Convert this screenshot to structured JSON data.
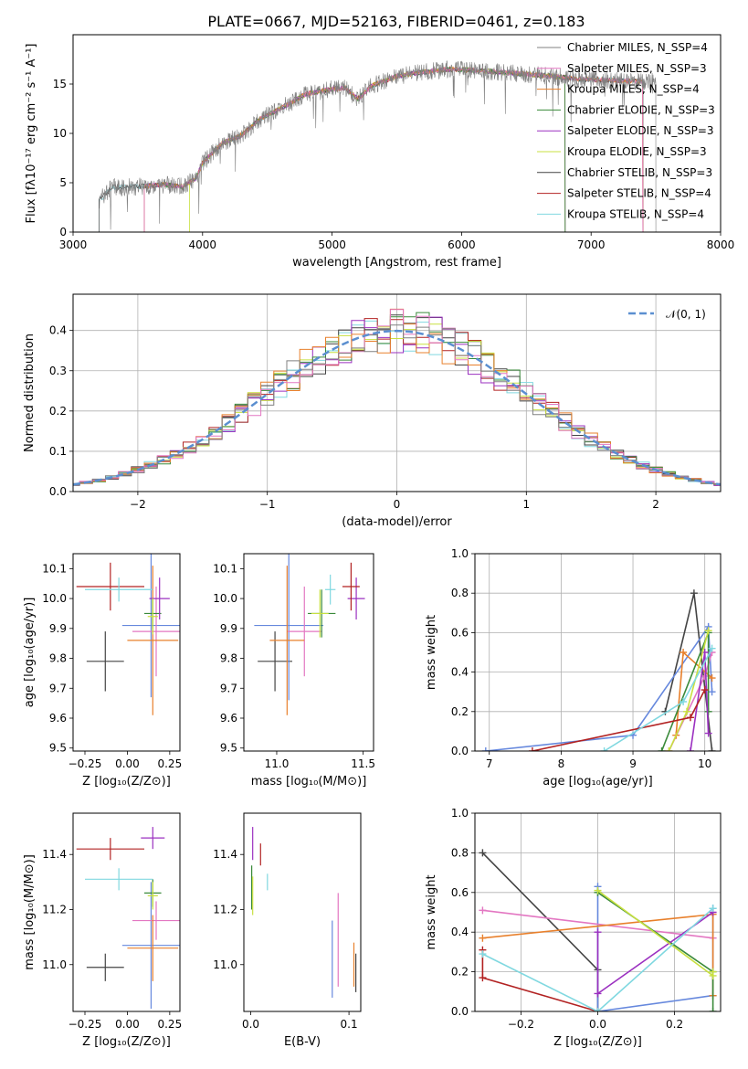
{
  "title": "PLATE=0667, MJD=52163, FIBERID=0461, z=0.183",
  "colors": {
    "chabrier_miles": "#808080",
    "salpeter_miles": "#e377c2",
    "kroupa_miles": "#e8802c",
    "chabrier_elodie": "#3a8a3a",
    "salpeter_elodie": "#9b30c0",
    "kroupa_elodie": "#c8e040",
    "chabrier_stelib": "#444444",
    "salpeter_stelib": "#b22222",
    "kroupa_stelib": "#80d8e0",
    "blue": "#6688dd",
    "gauss": "#5b8fd0"
  },
  "chart_data": [
    {
      "id": "spectrum",
      "type": "line",
      "title": "PLATE=0667, MJD=52163, FIBERID=0461, z=0.183",
      "xlabel": "wavelength [Angstrom, rest frame]",
      "ylabel": "Flux [fλ10⁻¹⁷ erg cm⁻² s⁻¹ A⁻¹]",
      "xlim": [
        3000,
        8000
      ],
      "ylim": [
        0,
        20
      ],
      "xticks": [
        "3000",
        "4000",
        "5000",
        "6000",
        "7000",
        "8000"
      ],
      "yticks": [
        "0",
        "5",
        "10",
        "15"
      ],
      "grid": false,
      "legend_position": "top-right",
      "legend": [
        "Chabrier MILES, N_SSP=4",
        "Salpeter MILES, N_SSP=3",
        "Kroupa MILES, N_SSP=4",
        "Chabrier ELODIE, N_SSP=3",
        "Salpeter ELODIE, N_SSP=3",
        "Kroupa ELODIE, N_SSP=3",
        "Chabrier STELIB, N_SSP=3",
        "Salpeter STELIB, N_SSP=4",
        "Kroupa STELIB, N_SSP=4"
      ],
      "series_extent": [
        [
          3200,
          7500
        ],
        [
          3550,
          7400
        ],
        [
          3550,
          7400
        ],
        [
          3550,
          6800
        ],
        [
          3550,
          6800
        ],
        [
          3900,
          6800
        ],
        [
          3200,
          7400
        ],
        [
          3550,
          7400
        ],
        [
          3200,
          7400
        ]
      ],
      "continuum": [
        [
          3200,
          3.2
        ],
        [
          3300,
          4.5
        ],
        [
          3500,
          4.6
        ],
        [
          3700,
          4.8
        ],
        [
          3850,
          4.6
        ],
        [
          3950,
          5.5
        ],
        [
          4000,
          7.0
        ],
        [
          4150,
          9.0
        ],
        [
          4300,
          9.8
        ],
        [
          4450,
          11.5
        ],
        [
          4600,
          12.5
        ],
        [
          4800,
          14.0
        ],
        [
          5000,
          14.5
        ],
        [
          5100,
          14.6
        ],
        [
          5200,
          13.5
        ],
        [
          5300,
          14.8
        ],
        [
          5500,
          15.8
        ],
        [
          5700,
          16.2
        ],
        [
          5900,
          16.5
        ],
        [
          6100,
          16.4
        ],
        [
          6300,
          16.2
        ],
        [
          6500,
          16.0
        ],
        [
          6700,
          15.8
        ],
        [
          6900,
          15.5
        ],
        [
          7100,
          15.4
        ],
        [
          7300,
          15.3
        ],
        [
          7500,
          15.2
        ]
      ]
    },
    {
      "id": "residuals",
      "type": "line",
      "xlabel": "(data-model)/error",
      "ylabel": "Normed distribution",
      "xlim": [
        -2.5,
        2.5
      ],
      "ylim": [
        0,
        0.49
      ],
      "xticks": [
        "−2",
        "−1",
        "0",
        "1",
        "2"
      ],
      "yticks": [
        "0.0",
        "0.1",
        "0.2",
        "0.3",
        "0.4"
      ],
      "grid": true,
      "legend_position": "top-right",
      "legend": [
        "𝒩(0, 1)"
      ],
      "bin_width": 0.1,
      "gaussian": {
        "mean": 0,
        "sigma": 1
      }
    },
    {
      "id": "age_vs_Z",
      "type": "scatter",
      "xlabel": "Z [log₁₀(Z/Z⊙)]",
      "ylabel": "age  [log₁₀(age/yr)]",
      "xlim": [
        -0.32,
        0.31
      ],
      "ylim": [
        9.49,
        10.15
      ],
      "xticks": [
        "−0.25",
        "0.00",
        "0.25"
      ],
      "yticks": [
        "9.5",
        "9.6",
        "9.7",
        "9.8",
        "9.9",
        "10.0",
        "10.1"
      ],
      "points": [
        {
          "x": -0.13,
          "y": 9.79,
          "xe": 0.11,
          "ye": 0.1,
          "c": "chabrier_stelib"
        },
        {
          "x": 0.14,
          "y": 9.91,
          "xe": 0.17,
          "ye": 0.24,
          "c": "blue"
        },
        {
          "x": 0.17,
          "y": 9.89,
          "xe": 0.14,
          "ye": 0.15,
          "c": "salpeter_miles"
        },
        {
          "x": 0.15,
          "y": 9.86,
          "xe": 0.15,
          "ye": 0.25,
          "c": "kroupa_miles"
        },
        {
          "x": 0.15,
          "y": 9.95,
          "xe": 0.05,
          "ye": 0.05,
          "c": "chabrier_elodie"
        },
        {
          "x": 0.19,
          "y": 10.0,
          "xe": 0.06,
          "ye": 0.07,
          "c": "salpeter_elodie"
        },
        {
          "x": 0.15,
          "y": 9.94,
          "xe": 0.03,
          "ye": 0.06,
          "c": "kroupa_elodie"
        },
        {
          "x": -0.1,
          "y": 10.04,
          "xe": 0.2,
          "ye": 0.08,
          "c": "salpeter_stelib"
        },
        {
          "x": -0.05,
          "y": 10.03,
          "xe": 0.2,
          "ye": 0.04,
          "c": "kroupa_stelib"
        }
      ]
    },
    {
      "id": "age_vs_mass",
      "type": "scatter",
      "xlabel": "mass [log₁₀(M/M⊙)]",
      "ylabel": "",
      "xlim": [
        10.81,
        11.56
      ],
      "ylim": [
        9.49,
        10.15
      ],
      "xticks": [
        "11.0",
        "11.5"
      ],
      "yticks": [
        "9.5",
        "9.6",
        "9.7",
        "9.8",
        "9.9",
        "10.0",
        "10.1"
      ],
      "points": [
        {
          "x": 10.99,
          "y": 9.79,
          "xe": 0.1,
          "ye": 0.1,
          "c": "chabrier_stelib"
        },
        {
          "x": 11.07,
          "y": 9.91,
          "xe": 0.2,
          "ye": 0.25,
          "c": "blue"
        },
        {
          "x": 11.16,
          "y": 9.89,
          "xe": 0.1,
          "ye": 0.15,
          "c": "salpeter_miles"
        },
        {
          "x": 11.06,
          "y": 9.86,
          "xe": 0.1,
          "ye": 0.25,
          "c": "kroupa_miles"
        },
        {
          "x": 11.26,
          "y": 9.95,
          "xe": 0.08,
          "ye": 0.08,
          "c": "chabrier_elodie"
        },
        {
          "x": 11.46,
          "y": 10.0,
          "xe": 0.05,
          "ye": 0.07,
          "c": "salpeter_elodie"
        },
        {
          "x": 11.25,
          "y": 9.95,
          "xe": 0.05,
          "ye": 0.08,
          "c": "kroupa_elodie"
        },
        {
          "x": 11.43,
          "y": 10.04,
          "xe": 0.05,
          "ye": 0.08,
          "c": "salpeter_stelib"
        },
        {
          "x": 11.31,
          "y": 10.03,
          "xe": 0.03,
          "ye": 0.05,
          "c": "kroupa_stelib"
        }
      ]
    },
    {
      "id": "mass_vs_Z",
      "type": "scatter",
      "xlabel": "Z [log₁₀(Z/Z⊙)]",
      "ylabel": "mass [log₁₀(M/M⊙)]",
      "xlim": [
        -0.32,
        0.31
      ],
      "ylim": [
        10.83,
        11.55
      ],
      "xticks": [
        "−0.25",
        "0.00",
        "0.25"
      ],
      "yticks": [
        "11.0",
        "11.2",
        "11.4"
      ],
      "points": [
        {
          "x": -0.13,
          "y": 10.99,
          "xe": 0.11,
          "ye": 0.05,
          "c": "chabrier_stelib"
        },
        {
          "x": 0.14,
          "y": 11.07,
          "xe": 0.17,
          "ye": 0.23,
          "c": "blue"
        },
        {
          "x": 0.17,
          "y": 11.16,
          "xe": 0.14,
          "ye": 0.07,
          "c": "salpeter_miles"
        },
        {
          "x": 0.15,
          "y": 11.06,
          "xe": 0.15,
          "ye": 0.12,
          "c": "kroupa_miles"
        },
        {
          "x": 0.15,
          "y": 11.26,
          "xe": 0.05,
          "ye": 0.05,
          "c": "chabrier_elodie"
        },
        {
          "x": 0.15,
          "y": 11.46,
          "xe": 0.07,
          "ye": 0.04,
          "c": "salpeter_elodie"
        },
        {
          "x": 0.15,
          "y": 11.25,
          "xe": 0.03,
          "ye": 0.05,
          "c": "kroupa_elodie"
        },
        {
          "x": -0.1,
          "y": 11.42,
          "xe": 0.2,
          "ye": 0.04,
          "c": "salpeter_stelib"
        },
        {
          "x": -0.05,
          "y": 11.31,
          "xe": 0.2,
          "ye": 0.04,
          "c": "kroupa_stelib"
        }
      ]
    },
    {
      "id": "mass_vs_ebv",
      "type": "scatter",
      "xlabel": "E(B-V)",
      "ylabel": "",
      "xlim": [
        -0.007,
        0.112
      ],
      "ylim": [
        10.83,
        11.55
      ],
      "xticks": [
        "0.0",
        "0.1"
      ],
      "yticks": [
        "11.0",
        "11.2",
        "11.4"
      ],
      "points": [
        {
          "x": 0.107,
          "y": 10.97,
          "xe": 0,
          "ye": 0.07,
          "c": "chabrier_stelib"
        },
        {
          "x": 0.083,
          "y": 11.02,
          "xe": 0,
          "ye": 0.14,
          "c": "blue"
        },
        {
          "x": 0.089,
          "y": 11.09,
          "xe": 0,
          "ye": 0.17,
          "c": "salpeter_miles"
        },
        {
          "x": 0.105,
          "y": 11.0,
          "xe": 0,
          "ye": 0.08,
          "c": "kroupa_miles"
        },
        {
          "x": 0.001,
          "y": 11.28,
          "xe": 0,
          "ye": 0.08,
          "c": "chabrier_elodie"
        },
        {
          "x": 0.002,
          "y": 11.44,
          "xe": 0,
          "ye": 0.06,
          "c": "salpeter_elodie"
        },
        {
          "x": 0.002,
          "y": 11.25,
          "xe": 0,
          "ye": 0.07,
          "c": "kroupa_elodie"
        },
        {
          "x": 0.01,
          "y": 11.4,
          "xe": 0,
          "ye": 0.04,
          "c": "salpeter_stelib"
        },
        {
          "x": 0.017,
          "y": 11.3,
          "xe": 0,
          "ye": 0.03,
          "c": "kroupa_stelib"
        }
      ]
    },
    {
      "id": "weight_vs_age",
      "type": "line",
      "xlabel": "age  [log₁₀(age/yr)]",
      "ylabel": "mass weight",
      "xlim": [
        6.8,
        10.22
      ],
      "ylim": [
        0,
        1.0
      ],
      "xticks": [
        "7",
        "8",
        "9",
        "10"
      ],
      "yticks": [
        "0.0",
        "0.2",
        "0.4",
        "0.6",
        "0.8",
        "1.0"
      ],
      "grid": true,
      "series": [
        {
          "c": "chabrier_stelib",
          "x": [
            9.45,
            9.85,
            10.1
          ],
          "y": [
            0.2,
            0.8,
            0.0
          ]
        },
        {
          "c": "blue",
          "x": [
            6.95,
            9.0,
            10.05,
            10.1
          ],
          "y": [
            0.0,
            0.08,
            0.63,
            0.3
          ]
        },
        {
          "c": "salpeter_miles",
          "x": [
            9.5,
            10.0,
            10.1
          ],
          "y": [
            0.0,
            0.38,
            0.5
          ]
        },
        {
          "c": "kroupa_miles",
          "x": [
            9.6,
            9.7,
            10.1
          ],
          "y": [
            0.08,
            0.5,
            0.37
          ]
        },
        {
          "c": "chabrier_elodie",
          "x": [
            9.4,
            10.05,
            10.05
          ],
          "y": [
            0.0,
            0.6,
            0.2
          ]
        },
        {
          "c": "salpeter_elodie",
          "x": [
            9.8,
            10.0,
            10.05
          ],
          "y": [
            0.0,
            0.5,
            0.09
          ]
        },
        {
          "c": "kroupa_elodie",
          "x": [
            9.5,
            9.75,
            10.05
          ],
          "y": [
            0.0,
            0.2,
            0.61
          ]
        },
        {
          "c": "salpeter_stelib",
          "x": [
            7.6,
            9.8,
            10.0
          ],
          "y": [
            0.0,
            0.17,
            0.31
          ]
        },
        {
          "c": "kroupa_stelib",
          "x": [
            8.6,
            9.7,
            10.1
          ],
          "y": [
            0.0,
            0.25,
            0.52
          ]
        }
      ]
    },
    {
      "id": "weight_vs_Z",
      "type": "line",
      "xlabel": "Z [log₁₀(Z/Z⊙)]",
      "ylabel": "mass weight",
      "xlim": [
        -0.32,
        0.32
      ],
      "ylim": [
        0,
        1.0
      ],
      "xticks": [
        "−0.2",
        "0.0",
        "0.2"
      ],
      "yticks": [
        "0.0",
        "0.2",
        "0.4",
        "0.6",
        "0.8",
        "1.0"
      ],
      "grid": true,
      "series": [
        {
          "c": "chabrier_stelib",
          "x": [
            -0.3,
            0.0,
            0.0
          ],
          "y": [
            0.8,
            0.21,
            0.0
          ]
        },
        {
          "c": "blue",
          "x": [
            0.0,
            0.0,
            0.3,
            0.3
          ],
          "y": [
            0.63,
            0.0,
            0.08,
            0.52
          ]
        },
        {
          "c": "salpeter_miles",
          "x": [
            -0.3,
            0.3
          ],
          "y": [
            0.51,
            0.37
          ]
        },
        {
          "c": "kroupa_miles",
          "x": [
            -0.3,
            0.3,
            0.3
          ],
          "y": [
            0.37,
            0.49,
            0.08
          ]
        },
        {
          "c": "chabrier_elodie",
          "x": [
            0.0,
            0.3,
            0.3
          ],
          "y": [
            0.6,
            0.2,
            0.0
          ]
        },
        {
          "c": "salpeter_elodie",
          "x": [
            0.0,
            0.0,
            0.3
          ],
          "y": [
            0.4,
            0.09,
            0.5
          ]
        },
        {
          "c": "kroupa_elodie",
          "x": [
            0.0,
            0.3,
            0.3
          ],
          "y": [
            0.61,
            0.18,
            0.2
          ]
        },
        {
          "c": "salpeter_stelib",
          "x": [
            -0.3,
            -0.3,
            0.0
          ],
          "y": [
            0.31,
            0.17,
            0.0
          ]
        },
        {
          "c": "kroupa_stelib",
          "x": [
            -0.3,
            0.0,
            0.3
          ],
          "y": [
            0.29,
            0.0,
            0.52
          ]
        }
      ]
    }
  ]
}
